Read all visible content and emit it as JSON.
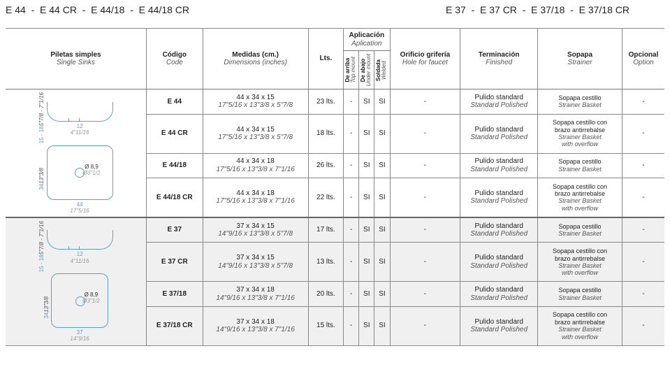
{
  "title_left": "E 44  -  E 44 CR  -  E 44/18  -  E 44/18 CR",
  "title_right": "E 37  -  E 37 CR  -  E 37/18  -  E 37/18 CR",
  "headers": {
    "piletas": "Piletas simples",
    "piletas_en": "Single Sinks",
    "codigo": "Código",
    "codigo_en": "Code",
    "medidas": "Medidas (cm.)",
    "medidas_en": "Dimensions (inches)",
    "lts": "Lts.",
    "aplicacion": "Aplicación",
    "aplicacion_en": "Aplication",
    "arriba": "De arriba",
    "arriba_en": "Top mount",
    "abajo": "De abajo",
    "abajo_en": "Under mount",
    "soldada": "Soldada",
    "soldada_en": "Welded",
    "orificio": "Orificio grifería",
    "orificio_en": "Hole for faucet",
    "terminacion": "Terminación",
    "terminacion_en": "Finished",
    "sopapa": "Sopapa",
    "sopapa_en": "Strainer",
    "opcional": "Opcional",
    "opcional_en": "Option"
  },
  "draw": {
    "h1": "15 - 18",
    "h1_in": "5\"7/8 - 7\"1/16",
    "w_sub": "12",
    "w_sub_in": "4\"11/16",
    "h2": "34",
    "h2_in": "13\"3/8",
    "w1": "44",
    "w1_in": "17\"5/16",
    "w2": "37",
    "w2_in": "14\"9/16",
    "diam": "Ø 8,9",
    "diam_in": "Ø3\"1/2"
  },
  "pulido": "Pulido standard",
  "pulido_en": "Standard Polished",
  "sop1": "Sopapa cestillo",
  "sop1_en": "Strainer Basket",
  "sop2a": "Sopapa cestillo con",
  "sop2b": "brazo antirrebalse",
  "sop2_en_a": "Strainer Basket",
  "sop2_en_b": "with overflow",
  "rows": [
    {
      "code": "E 44",
      "dim": "44 x 34 x 15",
      "dim_in": "17\"5/16 x 13\"3/8 x 5\"7/8",
      "lts": "23 lts.",
      "sop": "1"
    },
    {
      "code": "E 44 CR",
      "dim": "44 x 34 x 15",
      "dim_in": "17\"5/16 x 13\"3/8 x 5\"7/8",
      "lts": "18 lts.",
      "sop": "2"
    },
    {
      "code": "E 44/18",
      "dim": "44 x 34 x 18",
      "dim_in": "17\"5/16 x 13\"3/8 x 7\"1/16",
      "lts": "26 lts.",
      "sop": "1"
    },
    {
      "code": "E 44/18 CR",
      "dim": "44 x 34 x 18",
      "dim_in": "17\"5/16 x 13\"3/8 x 7\"1/16",
      "lts": "22 lts.",
      "sop": "2"
    },
    {
      "code": "E 37",
      "dim": "37 x 34 x 15",
      "dim_in": "14\"9/16 x 13\"3/8 x 5\"7/8",
      "lts": "17 lts.",
      "sop": "1"
    },
    {
      "code": "E 37 CR",
      "dim": "37 x 34 x 15",
      "dim_in": "14\"9/16 x 13\"3/8 x 5\"7/8",
      "lts": "13 lts.",
      "sop": "2"
    },
    {
      "code": "E 37/18",
      "dim": "37 x 34 x 18",
      "dim_in": "14\"9/16 x 13\"3/8 x 7\"1/16",
      "lts": "20 lts.",
      "sop": "1"
    },
    {
      "code": "E 37/18 CR",
      "dim": "37 x 34 x 18",
      "dim_in": "14\"9/16 x 13\"3/8 x 7\"1/16",
      "lts": "15 lts.",
      "sop": "2"
    }
  ],
  "colwidths": {
    "piletas": 200,
    "codigo": 80,
    "medidas": 150,
    "lts": 50,
    "app": 22,
    "orificio": 100,
    "terminacion": 110,
    "sopapa": 120,
    "opcional": 60
  }
}
